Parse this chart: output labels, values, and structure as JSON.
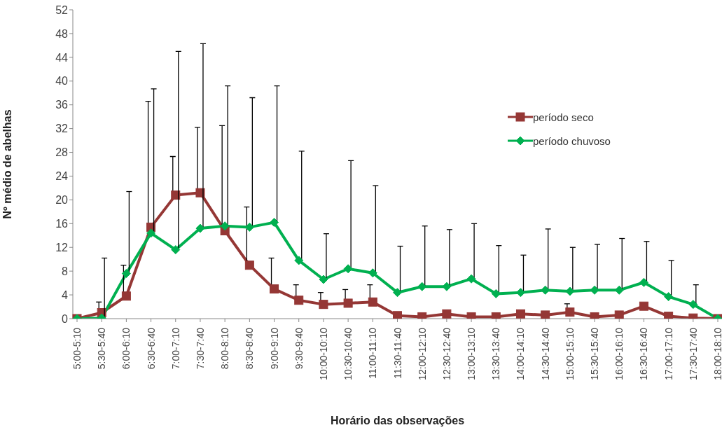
{
  "chart_data": {
    "type": "line",
    "xlabel": "Horário das observações",
    "ylabel": "Nº médio de abelhas",
    "categories": [
      "5:00-5:10",
      "5:30-5:40",
      "6:00-6:10",
      "6:30-6:40",
      "7:00-7:10",
      "7:30-7:40",
      "8:00-8:10",
      "8:30-8:40",
      "9:00-9:10",
      "9:30-9:40",
      "10:00-10:10",
      "10:30-10:40",
      "11:00-11:10",
      "11:30-11:40",
      "12:00-12:10",
      "12:30-12:40",
      "13:00-13:10",
      "13:30-13:40",
      "14:00-14:10",
      "14:30-14:40",
      "15:00-15:10",
      "15:30-15:40",
      "16:00-16:10",
      "16:30-16:40",
      "17:00-17:10",
      "17:30-17:40",
      "18:00-18:10"
    ],
    "series": [
      {
        "name": "período seco",
        "color": "#953735",
        "marker": "square",
        "values": [
          0,
          1.0,
          3.8,
          15.4,
          20.8,
          21.2,
          14.8,
          9.0,
          5.0,
          3.1,
          2.4,
          2.6,
          2.8,
          0.5,
          0.3,
          0.8,
          0.3,
          0.3,
          0.8,
          0.6,
          1.1,
          0.3,
          0.6,
          2.1,
          0.4,
          0.1,
          0
        ],
        "errors": [
          null,
          [
            1.0,
            2.8
          ],
          [
            3.8,
            9.0
          ],
          [
            15.4,
            36.6
          ],
          [
            20.8,
            27.3
          ],
          [
            21.2,
            32.2
          ],
          [
            14.8,
            32.5
          ],
          [
            9.0,
            18.8
          ],
          [
            5.0,
            10.2
          ],
          [
            3.1,
            5.7
          ],
          [
            2.4,
            4.4
          ],
          [
            2.6,
            4.9
          ],
          [
            2.8,
            5.7
          ],
          null,
          null,
          null,
          null,
          null,
          null,
          null,
          [
            1.1,
            2.5
          ],
          null,
          null,
          null,
          null,
          null,
          null
        ]
      },
      {
        "name": "período chuvoso",
        "color": "#00b050",
        "marker": "diamond",
        "values": [
          0,
          0.1,
          7.6,
          14.4,
          11.6,
          15.2,
          15.6,
          15.4,
          16.2,
          9.8,
          6.6,
          8.4,
          7.7,
          4.4,
          5.4,
          5.4,
          6.7,
          4.2,
          4.4,
          4.8,
          4.6,
          4.8,
          4.8,
          6.1,
          3.7,
          2.4,
          0
        ],
        "errors": [
          null,
          [
            0.1,
            10.2
          ],
          [
            7.6,
            21.4
          ],
          [
            14.4,
            38.7
          ],
          [
            11.6,
            45.0
          ],
          [
            15.2,
            46.3
          ],
          [
            15.6,
            39.2
          ],
          [
            15.4,
            37.2
          ],
          [
            16.2,
            39.2
          ],
          [
            9.8,
            28.2
          ],
          [
            6.6,
            14.3
          ],
          [
            8.4,
            26.6
          ],
          [
            7.7,
            22.4
          ],
          [
            4.4,
            12.2
          ],
          [
            5.4,
            15.6
          ],
          [
            5.4,
            15.0
          ],
          [
            6.7,
            16.0
          ],
          [
            4.2,
            12.3
          ],
          [
            4.4,
            10.7
          ],
          [
            4.8,
            15.1
          ],
          [
            4.6,
            12.0
          ],
          [
            4.8,
            12.5
          ],
          [
            4.8,
            13.5
          ],
          [
            6.1,
            13.0
          ],
          [
            3.7,
            9.8
          ],
          [
            2.4,
            5.7
          ],
          null
        ]
      }
    ],
    "ylim": [
      0,
      52
    ],
    "yticks": [
      0,
      4,
      8,
      12,
      16,
      20,
      24,
      28,
      32,
      36,
      40,
      44,
      48,
      52
    ],
    "grid": false,
    "legend": "right",
    "line_style": "solid"
  }
}
